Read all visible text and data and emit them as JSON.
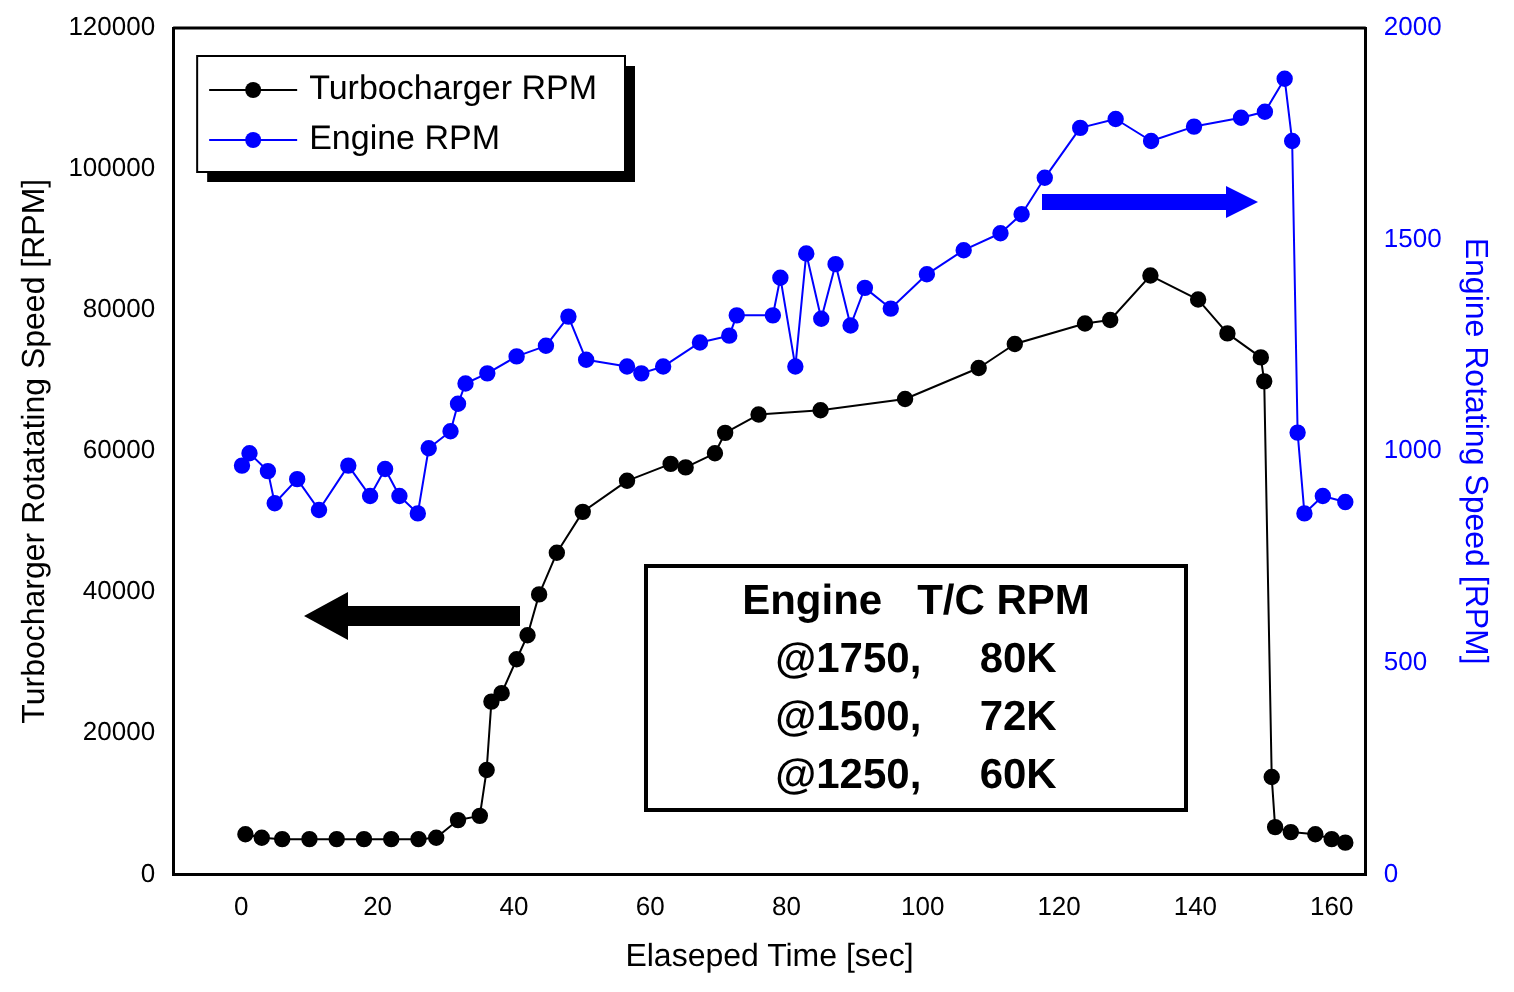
{
  "chart_data": {
    "type": "line",
    "xlabel": "Elaseped Time [sec]",
    "ylabel": "Turbocharger Rotatating Speed [RPM]",
    "y2label": "Engine Rotating Speed [RPM]",
    "xlim": [
      -10,
      165
    ],
    "xticks": [
      0,
      20,
      40,
      60,
      80,
      100,
      120,
      140,
      160
    ],
    "ylim": [
      0,
      120000
    ],
    "yticks": [
      0,
      20000,
      40000,
      60000,
      80000,
      100000,
      120000
    ],
    "y2lim": [
      0,
      2000
    ],
    "y2ticks": [
      0,
      500,
      1000,
      1500,
      2000
    ],
    "legend": "top left",
    "marker": "circle",
    "line_style": "solid",
    "grid": false,
    "annotations": [
      "Engine   T/C RPM",
      "@1750,     80K",
      "@1500,     72K",
      "@1250,     60K"
    ],
    "series": [
      {
        "name": "Turbocharger RPM",
        "color": "#000000",
        "x": [
          0.6,
          3,
          6,
          10,
          14,
          18,
          22,
          26,
          28.6,
          31.8,
          35,
          36,
          36.7,
          38.2,
          40.4,
          42,
          43.7,
          46.3,
          50.1,
          56.6,
          63,
          65.2,
          69.5,
          71,
          75.9,
          85,
          97.4,
          108.2,
          113.5,
          123.8,
          127.5,
          133.4,
          140.4,
          144.7,
          149.6,
          150.1,
          151.2,
          151.7,
          154,
          157.6,
          160,
          162
        ],
        "values": [
          5700,
          5200,
          5000,
          5000,
          5000,
          5000,
          5000,
          5000,
          5200,
          7700,
          8300,
          14800,
          24500,
          25700,
          30500,
          33900,
          39700,
          45600,
          51400,
          55800,
          58200,
          57700,
          59700,
          62600,
          65200,
          65800,
          67400,
          71800,
          75200,
          78100,
          78600,
          84900,
          81500,
          76700,
          73300,
          69900,
          13800,
          6700,
          6000,
          5700,
          5000,
          4500
        ]
      },
      {
        "name": "Engine RPM",
        "color": "#0000ff",
        "axis": "y2",
        "x": [
          0.1,
          1.2,
          3.9,
          4.9,
          8.2,
          11.4,
          15.7,
          18.9,
          21.1,
          23.2,
          25.9,
          27.5,
          30.7,
          31.8,
          32.9,
          36.1,
          40.4,
          44.7,
          48,
          50.6,
          56.6,
          58.7,
          61.9,
          67.3,
          71.6,
          72.7,
          78,
          79.1,
          81.3,
          82.9,
          85.1,
          87.2,
          89.4,
          91.5,
          95.3,
          100.6,
          106,
          111.4,
          114.5,
          117.9,
          123.1,
          128.3,
          133.5,
          139.8,
          146.7,
          150.2,
          153.1,
          154.2,
          155,
          156,
          158.7,
          162
        ],
        "values": [
          966,
          995,
          953,
          877,
          934,
          861,
          966,
          894,
          958,
          894,
          853,
          1007,
          1047,
          1112,
          1160,
          1184,
          1224,
          1249,
          1318,
          1216,
          1200,
          1184,
          1200,
          1257,
          1273,
          1321,
          1321,
          1410,
          1200,
          1467,
          1313,
          1442,
          1297,
          1386,
          1337,
          1418,
          1475,
          1515,
          1560,
          1646,
          1764,
          1785,
          1733,
          1767,
          1788,
          1802,
          1880,
          1733,
          1044,
          853,
          894,
          880
        ]
      }
    ]
  }
}
